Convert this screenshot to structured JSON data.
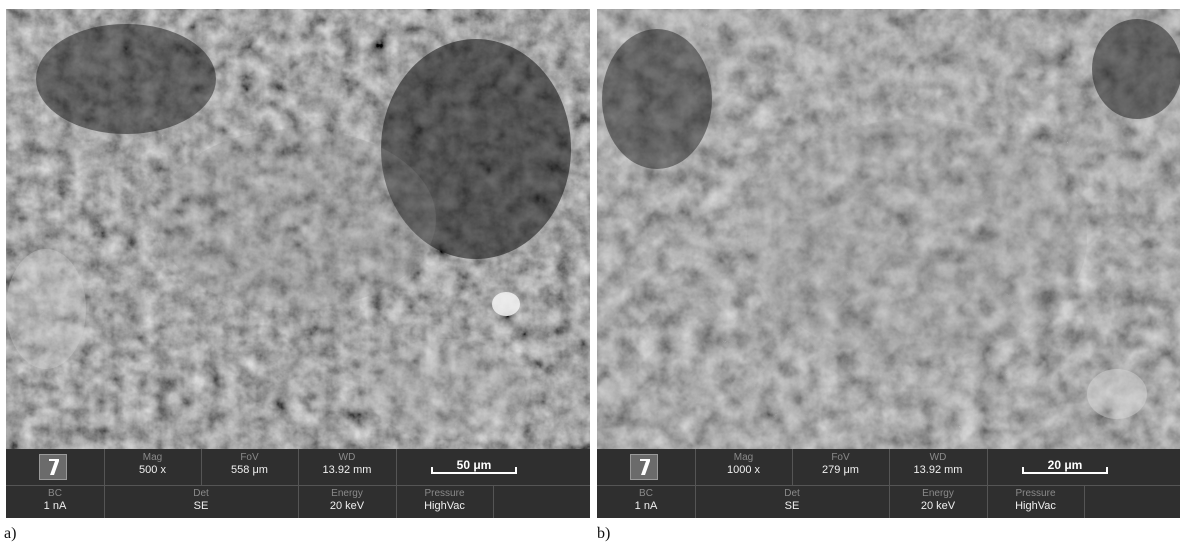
{
  "panel_a": {
    "caption": "a)",
    "databar": {
      "mag_label": "Mag",
      "mag_value": "500 x",
      "fov_label": "FoV",
      "fov_value": "558 μm",
      "wd_label": "WD",
      "wd_value": "13.92 mm",
      "scalebar": "50 μm",
      "bc_label": "BC",
      "bc_value": "1 nA",
      "det_label": "Det",
      "det_value": "SE",
      "energy_label": "Energy",
      "energy_value": "20 keV",
      "pressure_label": "Pressure",
      "pressure_value": "HighVac"
    }
  },
  "panel_b": {
    "caption": "b)",
    "databar": {
      "mag_label": "Mag",
      "mag_value": "1000 x",
      "fov_label": "FoV",
      "fov_value": "279 μm",
      "wd_label": "WD",
      "wd_value": "13.92 mm",
      "scalebar": "20 μm",
      "bc_label": "BC",
      "bc_value": "1 nA",
      "det_label": "Det",
      "det_value": "SE",
      "energy_label": "Energy",
      "energy_value": "20 keV",
      "pressure_label": "Pressure",
      "pressure_value": "HighVac"
    }
  },
  "colors": {
    "databar_bg": "#2f2f2f",
    "image_tone": "#3a3a3a"
  }
}
